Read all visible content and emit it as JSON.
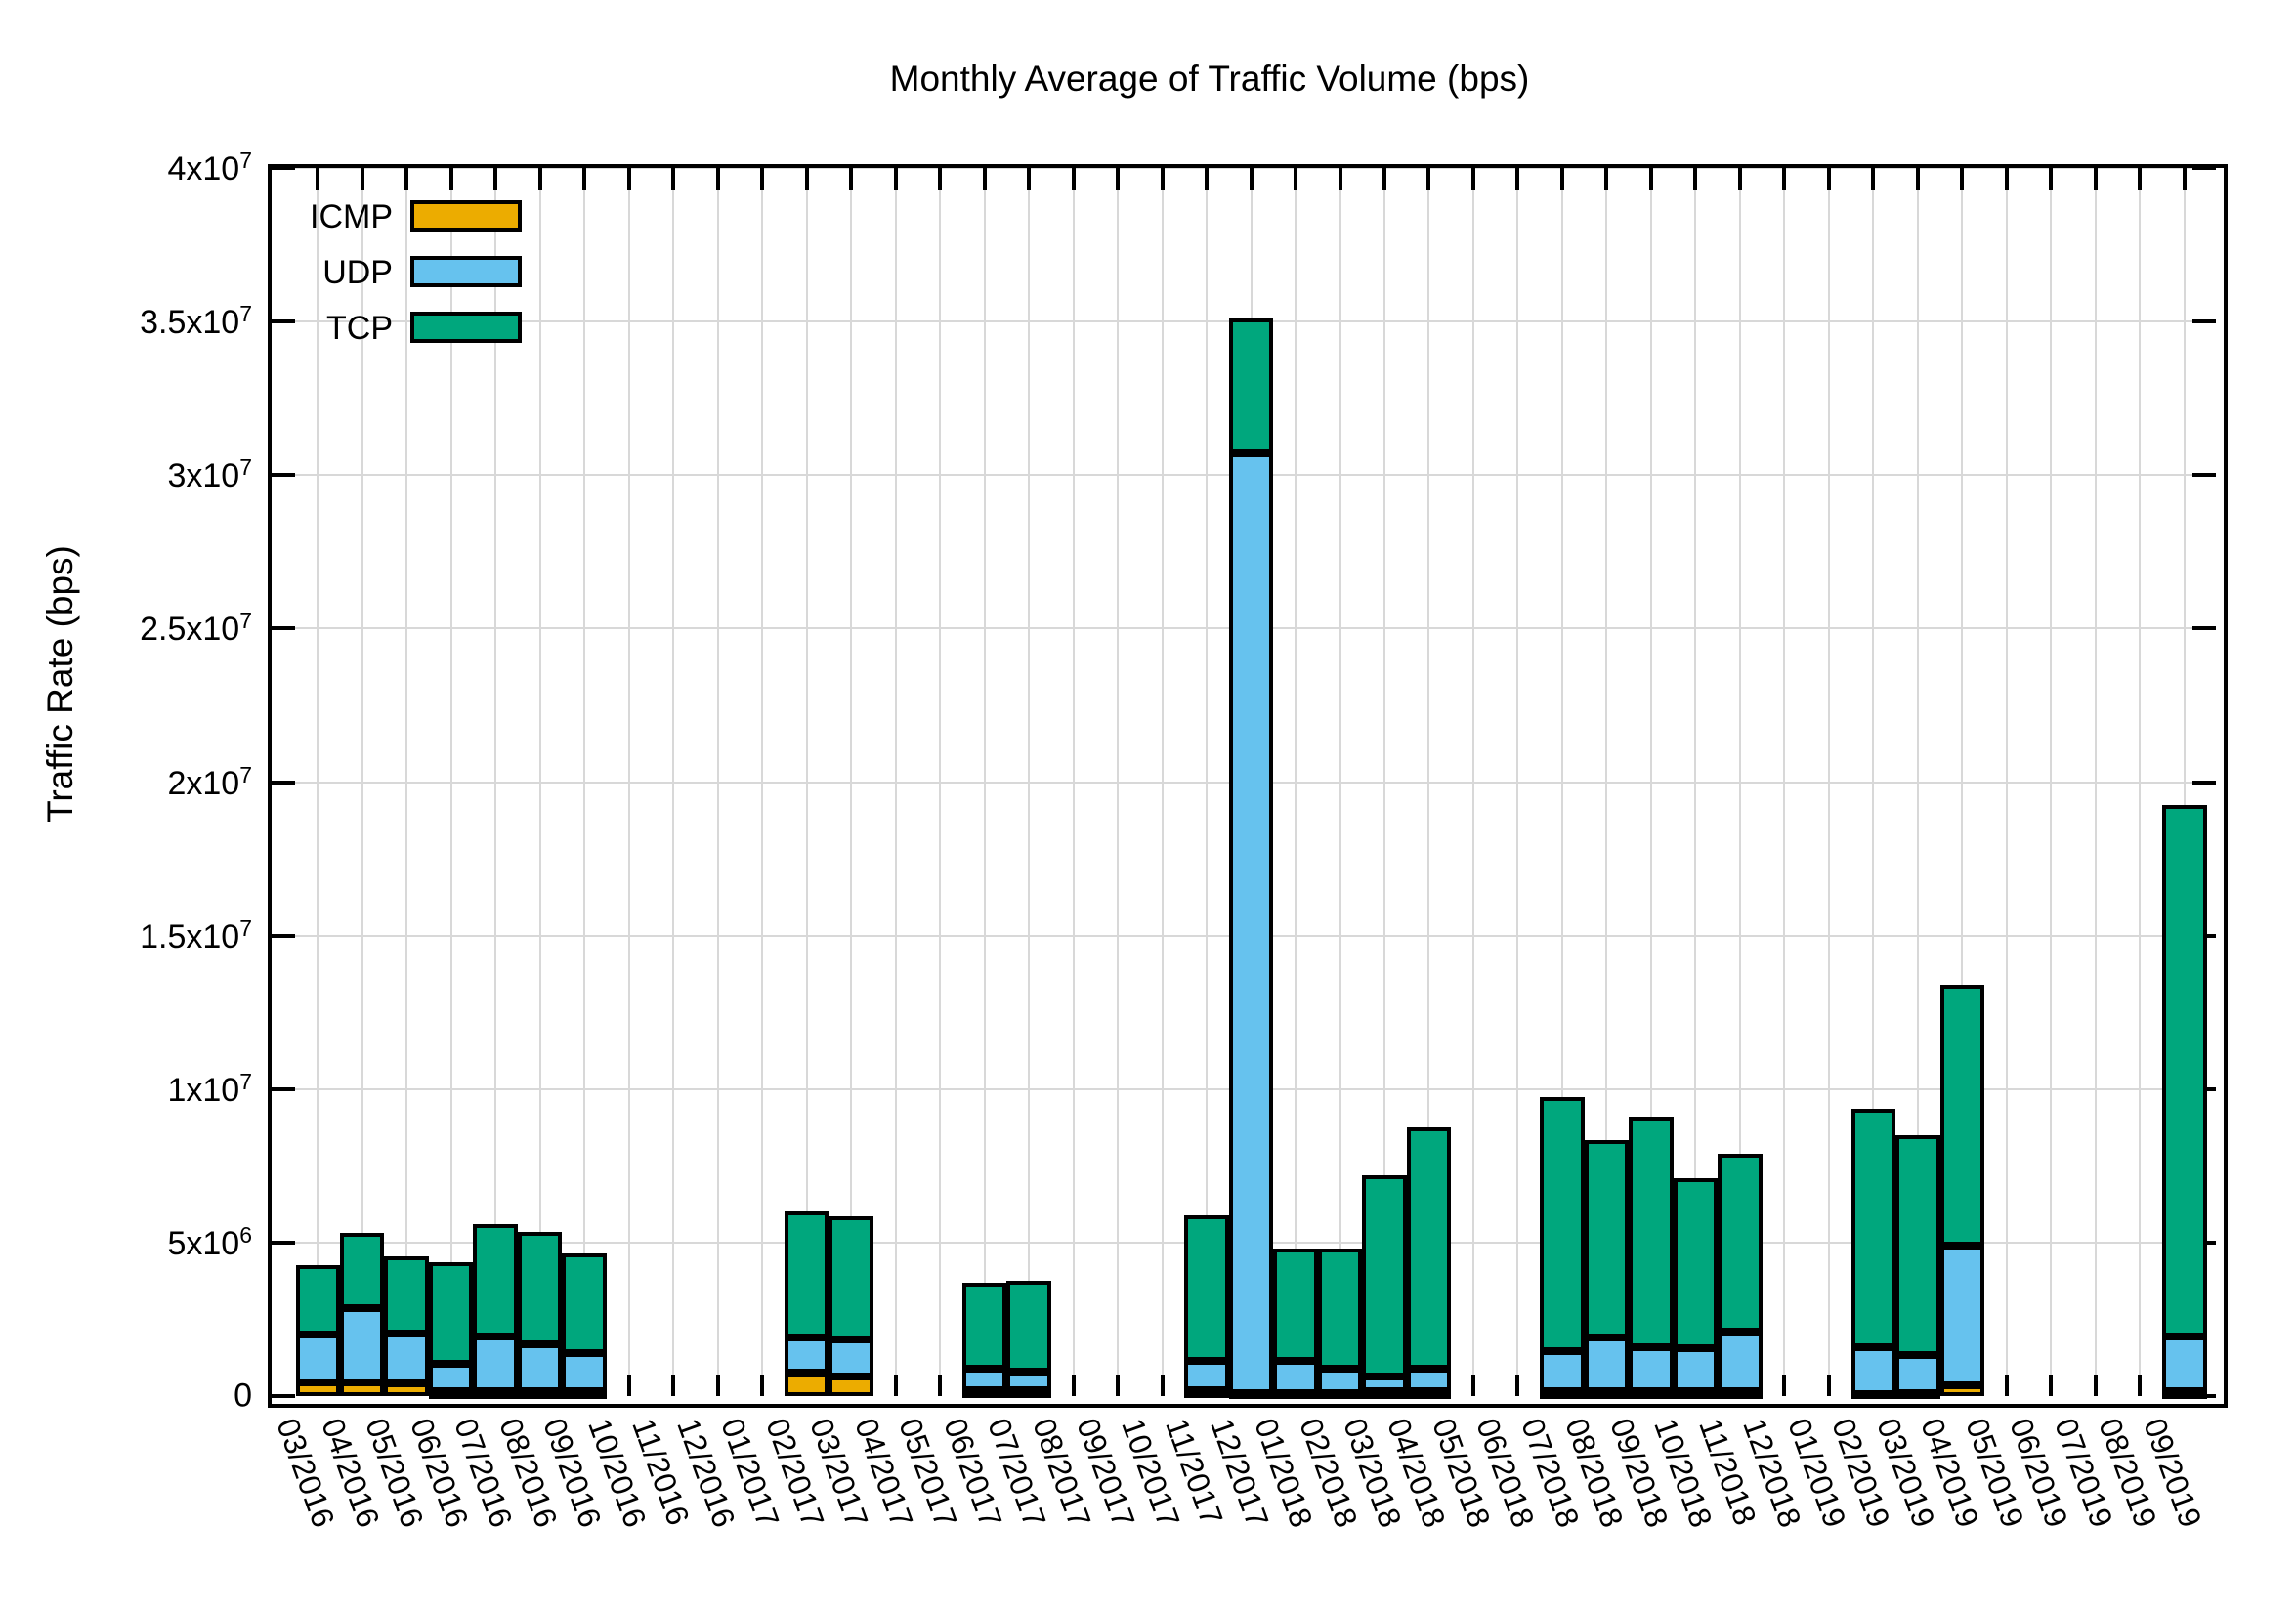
{
  "title": "Monthly Average of Traffic Volume (bps)",
  "y_axis": {
    "label": "Traffic Rate (bps)",
    "ticks": [
      {
        "value": 0,
        "label": "0"
      },
      {
        "value": 5000000,
        "label": "5x10^6"
      },
      {
        "value": 10000000,
        "label": "1x10^7"
      },
      {
        "value": 15000000,
        "label": "1.5x10^7"
      },
      {
        "value": 20000000,
        "label": "2x10^7"
      },
      {
        "value": 25000000,
        "label": "2.5x10^7"
      },
      {
        "value": 30000000,
        "label": "3x10^7"
      },
      {
        "value": 35000000,
        "label": "3.5x10^7"
      },
      {
        "value": 40000000,
        "label": "4x10^7"
      }
    ]
  },
  "legend": [
    {
      "label": "ICMP",
      "color": "#ECAC00"
    },
    {
      "label": "UDP",
      "color": "#66C2EE"
    },
    {
      "label": "TCP",
      "color": "#00A77D"
    }
  ],
  "colors": {
    "grid": "#d8d8d8",
    "axis": "#000000"
  },
  "chart_data": {
    "type": "bar",
    "stacked": true,
    "title": "Monthly Average of Traffic Volume (bps)",
    "xlabel": "",
    "ylabel": "Traffic Rate (bps)",
    "ylim": [
      0,
      40000000
    ],
    "grid": true,
    "legend_position": "top-left",
    "categories": [
      "03/2016",
      "04/2016",
      "05/2016",
      "06/2016",
      "07/2016",
      "08/2016",
      "09/2016",
      "10/2016",
      "11/2016",
      "12/2016",
      "01/2017",
      "02/2017",
      "03/2017",
      "04/2017",
      "05/2017",
      "06/2017",
      "07/2017",
      "08/2017",
      "09/2017",
      "10/2017",
      "11/2017",
      "12/2017",
      "01/2018",
      "02/2018",
      "03/2018",
      "04/2018",
      "05/2018",
      "06/2018",
      "07/2018",
      "08/2018",
      "09/2018",
      "10/2018",
      "11/2018",
      "12/2018",
      "01/2019",
      "02/2019",
      "03/2019",
      "04/2019",
      "05/2019",
      "06/2019",
      "07/2019",
      "08/2019",
      "09/2019"
    ],
    "series": [
      {
        "name": "ICMP",
        "color": "#ECAC00",
        "values": [
          450000,
          450000,
          400000,
          150000,
          150000,
          150000,
          150000,
          null,
          null,
          null,
          null,
          750000,
          650000,
          null,
          null,
          200000,
          200000,
          null,
          null,
          null,
          200000,
          100000,
          100000,
          100000,
          150000,
          150000,
          null,
          null,
          150000,
          150000,
          150000,
          150000,
          150000,
          null,
          null,
          50000,
          100000,
          350000,
          null,
          null,
          null,
          null,
          150000
        ]
      },
      {
        "name": "UDP",
        "color": "#66C2EE",
        "values": [
          1550000,
          2400000,
          1650000,
          900000,
          1800000,
          1550000,
          1250000,
          null,
          null,
          null,
          null,
          1150000,
          1200000,
          null,
          null,
          700000,
          600000,
          null,
          null,
          null,
          950000,
          30600000,
          1050000,
          800000,
          500000,
          750000,
          null,
          null,
          1300000,
          1750000,
          1450000,
          1400000,
          1950000,
          null,
          null,
          1550000,
          1250000,
          4550000,
          null,
          null,
          null,
          null,
          1800000
        ]
      },
      {
        "name": "TCP",
        "color": "#00A77D",
        "values": [
          2250000,
          2450000,
          2500000,
          3300000,
          3650000,
          3650000,
          3250000,
          null,
          null,
          null,
          null,
          4100000,
          4000000,
          null,
          null,
          2800000,
          2950000,
          null,
          null,
          null,
          4750000,
          4400000,
          3650000,
          3900000,
          6550000,
          7850000,
          null,
          null,
          8300000,
          6450000,
          7500000,
          5550000,
          5800000,
          null,
          null,
          7750000,
          7150000,
          8500000,
          null,
          null,
          null,
          null,
          17300000
        ]
      }
    ]
  }
}
